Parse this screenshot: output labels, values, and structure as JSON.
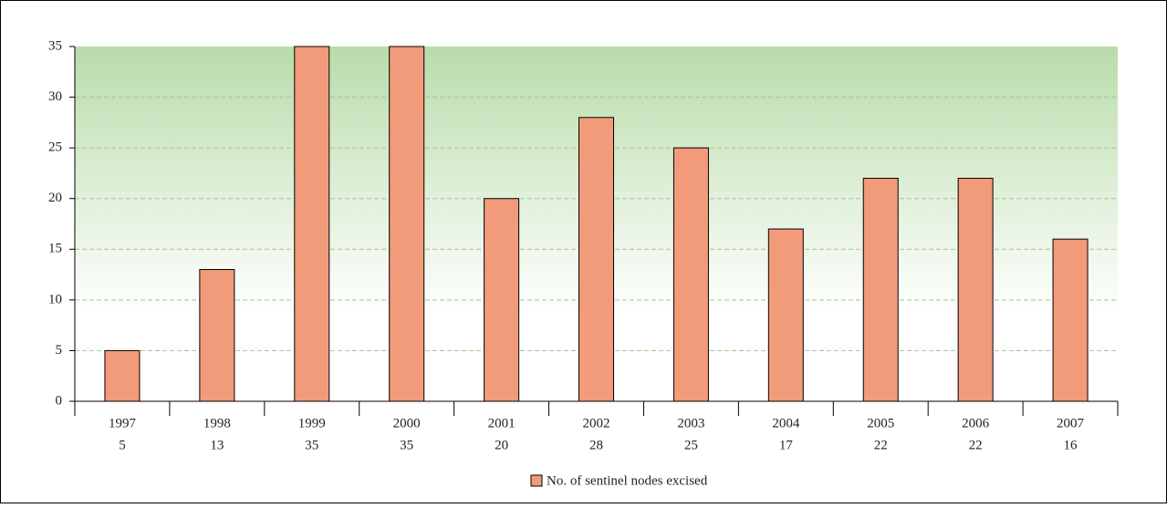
{
  "chart_data": {
    "type": "bar",
    "categories": [
      "1997",
      "1998",
      "1999",
      "2000",
      "2001",
      "2002",
      "2003",
      "2004",
      "2005",
      "2006",
      "2007"
    ],
    "series": [
      {
        "name": "No. of sentinel nodes excised",
        "color": "#f29b7a",
        "values": [
          5,
          13,
          35,
          35,
          20,
          28,
          25,
          17,
          22,
          22,
          16
        ]
      }
    ],
    "ylim": [
      0,
      35
    ],
    "yticks": [
      0,
      5,
      10,
      15,
      20,
      25,
      30,
      35
    ],
    "grid": true,
    "legend": "bottom"
  }
}
